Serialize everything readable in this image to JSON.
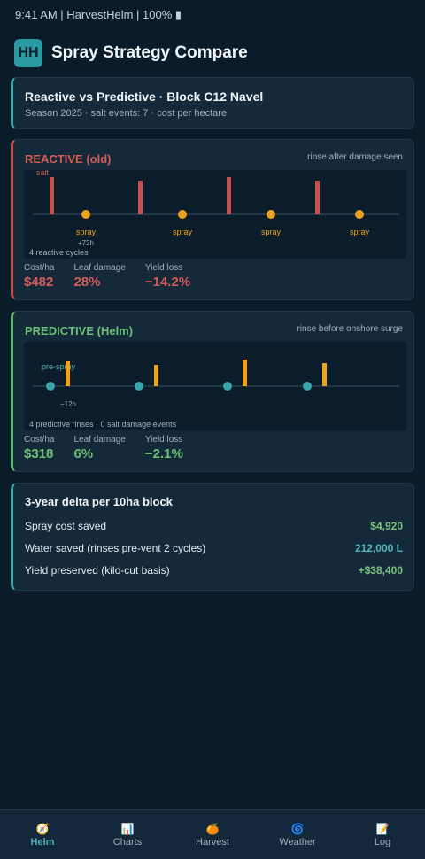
{
  "status_bar": "9:41 AM | HarvestHelm | 100% ▮",
  "header": {
    "logo": "HH",
    "title": "Spray Strategy Compare"
  },
  "summary": {
    "title": "Reactive vs Predictive · Block C12 Navel",
    "subtitle": "Season 2025 · salt events: 7 · cost per hectare"
  },
  "reactive": {
    "title": "REACTIVE (old)",
    "note": "rinse after damage seen",
    "timeline": {
      "first_bar_label": "salt",
      "event_label": "spray",
      "lag_label": "+72h",
      "footer": "4 reactive cycles"
    },
    "metrics": [
      {
        "label": "Cost/ha",
        "value": "$482"
      },
      {
        "label": "Leaf damage",
        "value": "28%"
      },
      {
        "label": "Yield loss",
        "value": "−14.2%"
      }
    ]
  },
  "predictive": {
    "title": "PREDICTIVE (Helm)",
    "note": "rinse before onshore surge",
    "timeline": {
      "first_dot_label": "pre-spray",
      "lead_label": "−12h",
      "footer": "4 predictive rinses · 0 salt damage events"
    },
    "metrics": [
      {
        "label": "Cost/ha",
        "value": "$318"
      },
      {
        "label": "Leaf damage",
        "value": "6%"
      },
      {
        "label": "Yield loss",
        "value": "−2.1%"
      }
    ]
  },
  "delta": {
    "title": "3-year delta per 10ha block",
    "rows": [
      {
        "label": "Spray cost saved",
        "value": "$4,920"
      },
      {
        "label": "Water saved (rinses pre-vent 2 cycles)",
        "value": "212,000 L"
      },
      {
        "label": "Yield preserved (kilo-cut basis)",
        "value": "+$38,400"
      }
    ]
  },
  "tabs": [
    {
      "label": "Helm",
      "icon": "🧭",
      "icon_name": "compass-icon"
    },
    {
      "label": "Charts",
      "icon": "📊",
      "icon_name": "bar-chart-icon"
    },
    {
      "label": "Harvest",
      "icon": "🍊",
      "icon_name": "orange-fruit-icon"
    },
    {
      "label": "Weather",
      "icon": "🌀",
      "icon_name": "cyclone-icon"
    },
    {
      "label": "Log",
      "icon": "📝",
      "icon_name": "memo-icon"
    }
  ],
  "colors": {
    "accent_teal": "#3aa5a9",
    "reactive_red": "#d65a55",
    "predictive_green": "#6cbf74",
    "spray_orange": "#f0a21c"
  }
}
